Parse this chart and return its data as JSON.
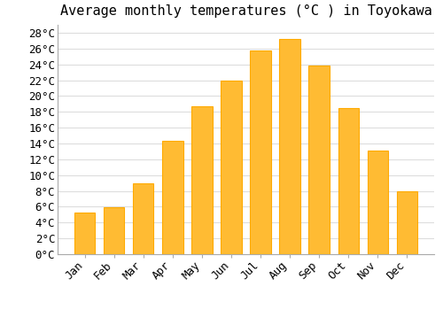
{
  "title": "Average monthly temperatures (°C ) in Toyokawa",
  "months": [
    "Jan",
    "Feb",
    "Mar",
    "Apr",
    "May",
    "Jun",
    "Jul",
    "Aug",
    "Sep",
    "Oct",
    "Nov",
    "Dec"
  ],
  "temperatures": [
    5.3,
    5.9,
    9.0,
    14.3,
    18.7,
    22.0,
    25.8,
    27.2,
    23.9,
    18.5,
    13.1,
    7.9
  ],
  "bar_color": "#FFBB33",
  "bar_edge_color": "#FFAA00",
  "background_color": "#FFFFFF",
  "grid_color": "#DDDDDD",
  "ylim": [
    0,
    29
  ],
  "ytick_step": 2,
  "title_fontsize": 11,
  "tick_fontsize": 9,
  "font_family": "monospace"
}
